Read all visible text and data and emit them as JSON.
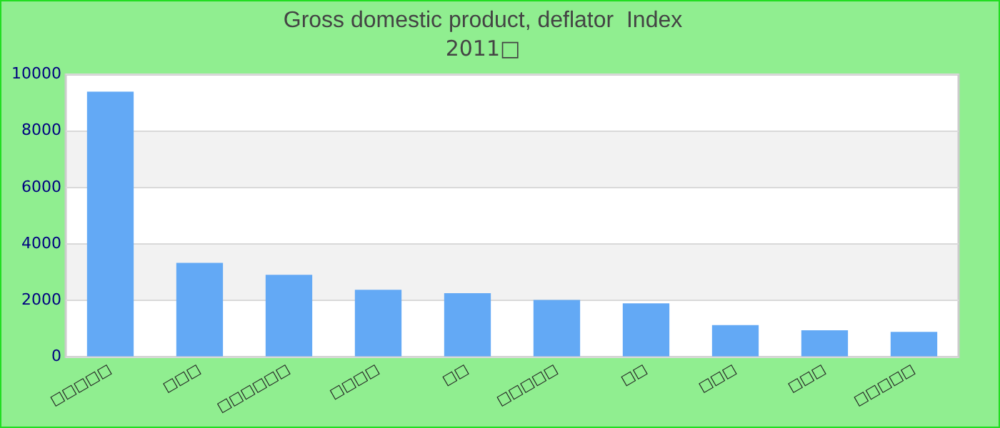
{
  "chart_data": {
    "type": "bar",
    "title": "Gross domestic product, deflator  Index",
    "subtitle": "2011□",
    "categories": [
      "□□□□□",
      "□□□",
      "□□□□□□",
      "□□□□",
      "□□",
      "□□□□□",
      "□□",
      "□□□",
      "□□□",
      "□□□□□"
    ],
    "values": [
      9390,
      3330,
      2910,
      2380,
      2260,
      2020,
      1900,
      1130,
      950,
      890
    ],
    "color": "#63a9f5",
    "ylim": [
      0,
      10000
    ],
    "yticks": [
      0,
      2000,
      4000,
      6000,
      8000,
      10000
    ],
    "grid": "y"
  }
}
